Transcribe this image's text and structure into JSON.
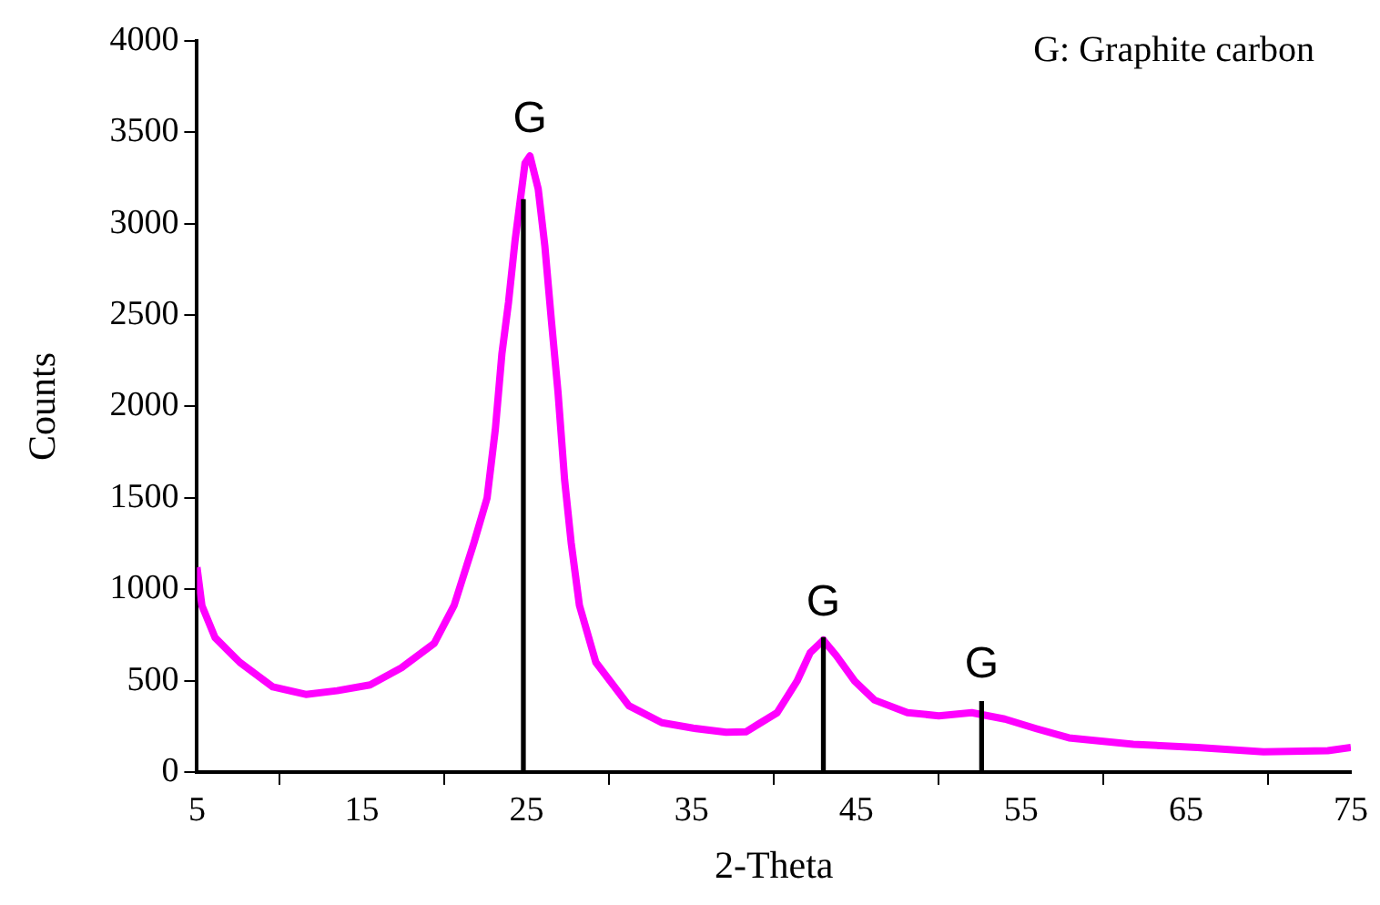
{
  "chart_data": {
    "type": "line",
    "xlabel": "2-Theta",
    "ylabel": "Counts",
    "xlim": [
      5,
      75
    ],
    "xticks": [
      5,
      15,
      25,
      35,
      45,
      55,
      65,
      75
    ],
    "ylim": [
      0,
      4000
    ],
    "yticks": [
      0,
      500,
      1000,
      1500,
      2000,
      2500,
      3000,
      3500,
      4000
    ],
    "grid": false,
    "legend": false,
    "marker": "none",
    "line_style": "solid",
    "series": [
      {
        "color": "#ff00ff",
        "x": [
          5,
          5.3,
          6.1,
          7.6,
          9.6,
          11.6,
          13.5,
          15.5,
          17.4,
          19.4,
          20.6,
          21.8,
          22.6,
          23.1,
          23.5,
          23.9,
          24.3,
          24.9,
          25.2,
          25.7,
          26.1,
          26.5,
          26.9,
          27.3,
          27.7,
          28.2,
          29.2,
          31.2,
          33.2,
          35.1,
          37.1,
          38.3,
          39.0,
          40.2,
          41.4,
          42.2,
          43.0,
          43.8,
          44.9,
          46.1,
          48.1,
          50.0,
          52.0,
          54.0,
          55.9,
          57.9,
          61.8,
          65.7,
          69.7,
          73.6,
          75
        ],
        "values": [
          1120,
          910,
          735,
          600,
          466,
          425,
          445,
          477,
          570,
          705,
          912,
          1254,
          1500,
          1875,
          2290,
          2570,
          2910,
          3330,
          3370,
          3190,
          2880,
          2470,
          2080,
          1600,
          1254,
          912,
          600,
          363,
          270,
          240,
          218,
          220,
          259,
          325,
          497,
          653,
          722,
          635,
          497,
          394,
          325,
          308,
          325,
          290,
          238,
          187,
          152,
          135,
          111,
          117,
          135
        ]
      },
      {
        "type": "bar",
        "color": "#000000",
        "x": [
          24.8,
          43.0,
          52.6
        ],
        "values": [
          3130,
          735,
          385
        ]
      }
    ],
    "annotations": [
      "G: Graphite carbon",
      {
        "text": "G",
        "x": 25.2,
        "y": 3370
      },
      {
        "text": "G",
        "x": 43.0,
        "y": 722
      },
      {
        "text": "G",
        "x": 52.6,
        "y": 385
      }
    ]
  }
}
